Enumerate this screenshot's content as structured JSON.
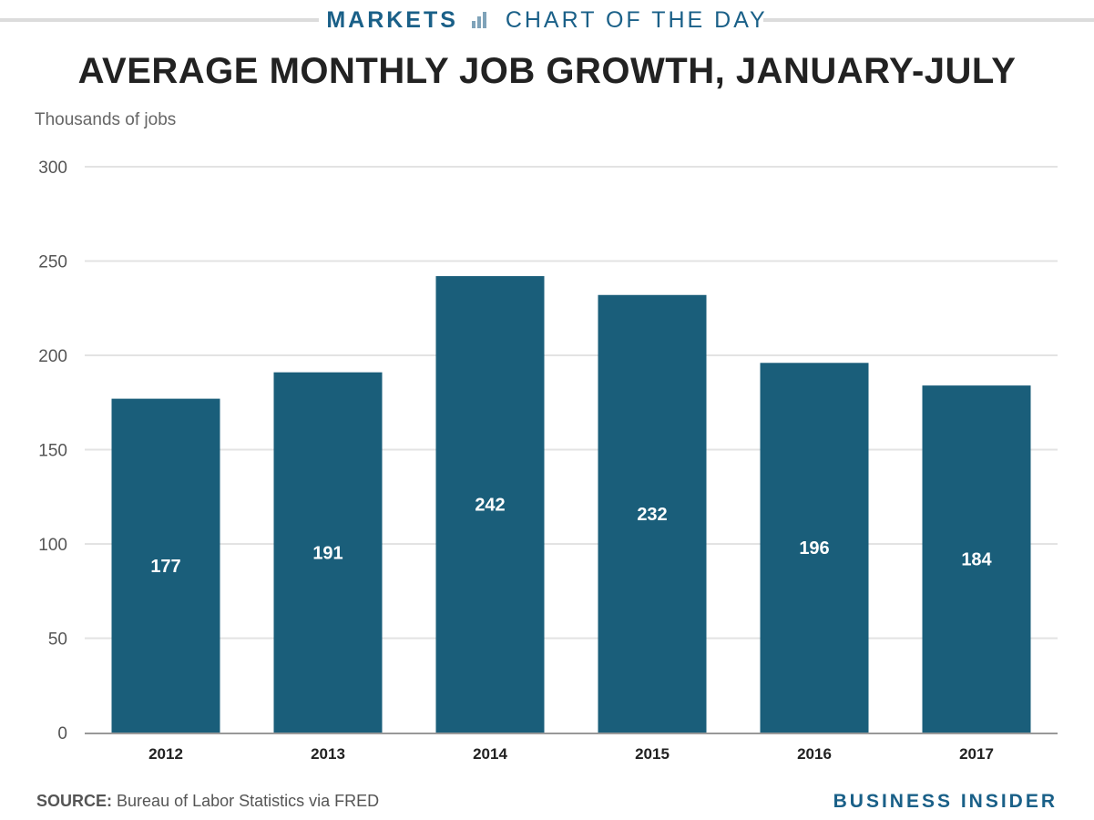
{
  "header": {
    "section": "MARKETS",
    "series_name": "CHART OF THE DAY"
  },
  "colors": {
    "accent": "#1a6088",
    "bar": "#1a5e7a",
    "grid": "#e3e3e3",
    "axis": "#999999"
  },
  "footer": {
    "source_label": "SOURCE:",
    "source_text": "Bureau of Labor Statistics via FRED",
    "brand": "BUSINESS INSIDER"
  },
  "chart_data": {
    "type": "bar",
    "title": "AVERAGE MONTHLY JOB GROWTH, JANUARY-JULY",
    "ylabel": "Thousands of jobs",
    "xlabel": "",
    "categories": [
      "2012",
      "2013",
      "2014",
      "2015",
      "2016",
      "2017"
    ],
    "values": [
      177,
      191,
      242,
      232,
      196,
      184
    ],
    "ylim": [
      0,
      300
    ],
    "yticks": [
      0,
      50,
      100,
      150,
      200,
      250,
      300
    ],
    "grid": true,
    "data_labels": true
  }
}
